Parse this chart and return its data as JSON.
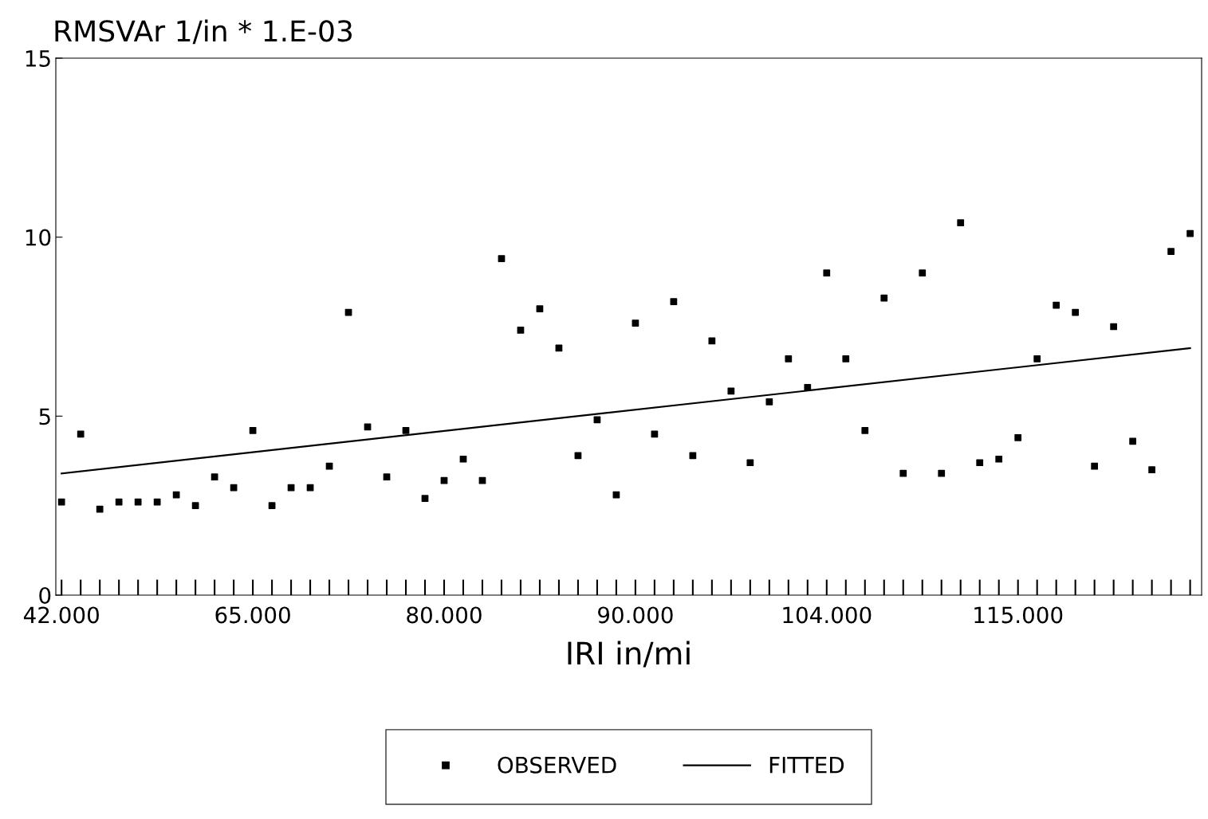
{
  "chart_data": {
    "type": "scatter",
    "ylabel": "RMSVAr 1/in * 1.E-03",
    "xlabel": "IRI in/mi",
    "categories": [
      "42.000",
      null,
      null,
      null,
      null,
      null,
      null,
      null,
      null,
      null,
      "65.000",
      null,
      null,
      null,
      null,
      null,
      null,
      null,
      null,
      null,
      "80.000",
      null,
      null,
      null,
      null,
      null,
      null,
      null,
      null,
      null,
      "90.000",
      null,
      null,
      null,
      null,
      null,
      null,
      null,
      null,
      null,
      "104.000",
      null,
      null,
      null,
      null,
      null,
      null,
      null,
      null,
      null,
      "115.000",
      null,
      null,
      null,
      null,
      null,
      null,
      null,
      null,
      null
    ],
    "series": [
      {
        "name": "OBSERVED",
        "color": "#000000",
        "marker": "square",
        "values": [
          2.6,
          4.5,
          2.4,
          2.6,
          2.6,
          2.6,
          2.8,
          2.5,
          3.3,
          3.0,
          4.6,
          2.5,
          3.0,
          3.0,
          3.6,
          7.9,
          4.7,
          3.3,
          4.6,
          2.7,
          3.2,
          3.8,
          3.2,
          9.4,
          7.4,
          8.0,
          6.9,
          3.9,
          4.9,
          2.8,
          7.6,
          4.5,
          8.2,
          3.9,
          7.1,
          5.7,
          3.7,
          5.4,
          6.6,
          5.8,
          9.0,
          6.6,
          4.6,
          8.3,
          3.4,
          9.0,
          3.4,
          10.4,
          3.7,
          3.8,
          4.4,
          6.6,
          8.1,
          7.9,
          3.6,
          7.5,
          4.3,
          3.5,
          9.6,
          10.1
        ]
      },
      {
        "name": "FITTED",
        "type": "line",
        "color": "#000000",
        "marker": "none",
        "line_style": "solid",
        "values": [
          3.4,
          null,
          null,
          null,
          null,
          null,
          null,
          null,
          null,
          null,
          null,
          null,
          null,
          null,
          null,
          null,
          null,
          null,
          null,
          null,
          null,
          null,
          null,
          null,
          null,
          null,
          null,
          null,
          null,
          null,
          null,
          null,
          null,
          null,
          null,
          null,
          null,
          null,
          null,
          null,
          null,
          null,
          null,
          null,
          null,
          null,
          null,
          null,
          null,
          null,
          null,
          null,
          null,
          null,
          null,
          null,
          null,
          null,
          null,
          6.9
        ]
      }
    ],
    "ylim": [
      0,
      15
    ],
    "yticks": [
      0,
      5,
      10,
      15
    ],
    "grid": false,
    "legend": "bottom"
  }
}
